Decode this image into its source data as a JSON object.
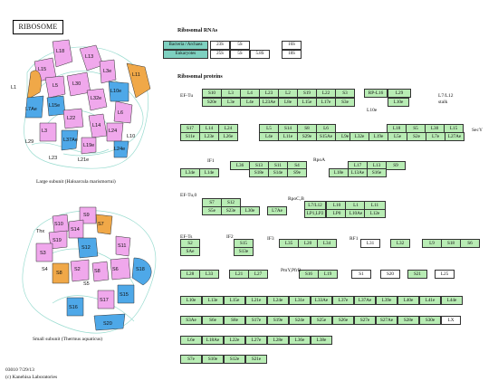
{
  "title": "RIBOSOME",
  "rna_header": "Ribosomal RNAs",
  "protein_header": "Ribosomal proteins",
  "rna_legend": {
    "row1": "Bacteria / Archaea",
    "row2": "Eukaryotes",
    "r1": [
      "23S",
      "5S",
      "16S"
    ],
    "r2": [
      "25S",
      "5S",
      "5.8S",
      "18S"
    ]
  },
  "large_caption": "Large subunit (Haloarcula marismortui)",
  "small_caption": "Small subunit (Thermus aquaticus)",
  "footer1": "03010 7/29/13",
  "footer2": "(c) Kanehisa Laboratories",
  "labels": {
    "eftu": "EF-Tu",
    "l10e": "L10e",
    "l7l12": "L7/L12",
    "stalk": "stalk",
    "sery": "SecY",
    "if1": "IF1",
    "rpoa": "RpoA",
    "eftu0": "EF-Tu,0",
    "rpoc": "RpoC,B",
    "efts": "EF-Ts",
    "if2": "IF2",
    "if3": "IF3",
    "rf1": "RF1",
    "pint": "PmY,PfrB",
    "lx": "LX",
    "l25": "L25"
  },
  "large_subunit_labels": [
    "L18",
    "L15",
    "L13",
    "L1",
    "L3e",
    "L5",
    "L30",
    "L11",
    "L7Ae",
    "L15e",
    "L32e",
    "L10e",
    "L14",
    "L22",
    "L24",
    "L23",
    "L29",
    "L37Ae",
    "L24e",
    "L37e",
    "L19e",
    "L21e",
    "L10",
    "L6",
    "L44e"
  ],
  "small_subunit_labels": [
    "S9",
    "S10",
    "S19",
    "S14",
    "S12",
    "S7",
    "S3",
    "S5",
    "S2",
    "S4",
    "S8",
    "S6",
    "S16",
    "S15",
    "S17",
    "S18",
    "S20",
    "S13",
    "S11"
  ],
  "rows": {
    "r1a": [
      "S10",
      "L3",
      "L4",
      "L23",
      "L2",
      "S19",
      "L22",
      "S3"
    ],
    "r1b": [
      "S20e",
      "L3e",
      "L4e",
      "L23Ae",
      "L8e",
      "L15e",
      "L17e",
      "S3e"
    ],
    "r1c": [
      "RP-L16",
      "L29"
    ],
    "r1d": [
      "L10e",
      "L35e"
    ],
    "r2a": [
      "S17",
      "L14",
      "L24",
      "L5",
      "S14",
      "S8",
      "L6"
    ],
    "r2b": [
      "S11e",
      "L23e",
      "L26e",
      "L4e",
      "L11e",
      "S29e",
      "S15Ae",
      "L9e"
    ],
    "r2c": [
      "L18",
      "S5",
      "L30",
      "L15"
    ],
    "r2d": [
      "L32e",
      "L19e",
      "L5e",
      "S2e",
      "L7e",
      "L27Ae"
    ],
    "r3a": [
      "L36",
      "S13",
      "S11",
      "S4"
    ],
    "r3b": [
      "S18e",
      "S14e",
      "S9e"
    ],
    "r3c": [
      "L34e",
      "L14e"
    ],
    "r3d": [
      "L17",
      "L13",
      "S9"
    ],
    "r3e": [
      "L18e",
      "L13Ae",
      "S16e"
    ],
    "r4a": [
      "S7",
      "S12"
    ],
    "r4b": [
      "S5e",
      "S23e",
      "L30e"
    ],
    "r4c": [
      "L7Ae"
    ],
    "r4d": [
      "L7/L12",
      "L10",
      "L1",
      "L11"
    ],
    "r4e": [
      "LP1,LP2",
      "LP0",
      "L10Ae",
      "L12e"
    ],
    "r5a": [
      "S2"
    ],
    "r5b": [
      "SAe"
    ],
    "r5c": [
      "S15"
    ],
    "r5d": [
      "S13e"
    ],
    "r5e": [
      "L35",
      "L20",
      "L34"
    ],
    "r5f": [
      "L31"
    ],
    "r5g": [
      "L32"
    ],
    "r5h": [
      "L9",
      "S18",
      "S6"
    ],
    "r6a": [
      "L28",
      "L33"
    ],
    "r6b": [
      "L21",
      "L27"
    ],
    "r6c": [
      "S16",
      "L19"
    ],
    "r6d": [
      "S1"
    ],
    "r6e": [
      "S20"
    ],
    "r6f": [
      "S21"
    ],
    "r6g": [
      "L25"
    ],
    "r7": [
      "L10e",
      "L13e",
      "L15e",
      "L21e",
      "L24e",
      "L31e",
      "L33Ae",
      "L37e",
      "L37Ae",
      "L39e",
      "L40e",
      "L41e",
      "L44e"
    ],
    "r8": [
      "S3Ae",
      "S6e",
      "S8e",
      "S17e",
      "S19e",
      "S24e",
      "S25e",
      "S26e",
      "S27e",
      "S27Ae",
      "S28e",
      "S30e"
    ],
    "r9": [
      "L6e",
      "L18Ae",
      "L22e",
      "L27e",
      "L28e",
      "L36e",
      "L38e"
    ],
    "r10": [
      "S7e",
      "S10e",
      "S12e",
      "S21e"
    ]
  },
  "colors": {
    "green": "#b8ecb4",
    "pink": "#f0a8ec",
    "blue": "#4ea8e8",
    "orange": "#f0a848",
    "teal": "#5cc0b0"
  }
}
